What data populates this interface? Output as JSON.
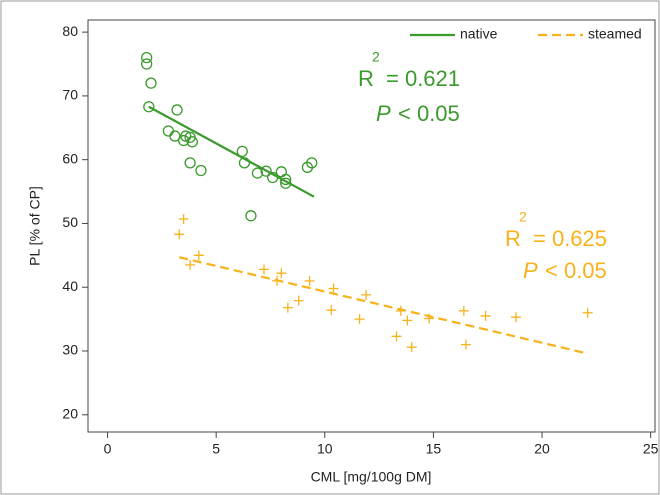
{
  "chart_data": {
    "type": "scatter",
    "x_label": "CML [mg/100g DM]",
    "y_label": "PL [% of CP]",
    "xlim": [
      -0.9,
      25.2
    ],
    "xticks": [
      0,
      5,
      10,
      15,
      20,
      25
    ],
    "ylim": [
      17.3,
      81.9
    ],
    "yticks": [
      20,
      30,
      40,
      50,
      60,
      70,
      80
    ],
    "legend": "top-right",
    "series": [
      {
        "name": "native",
        "color": "#3a9a2c",
        "marker": "circle",
        "line_style": "solid",
        "x": [
          1.8,
          1.8,
          2.0,
          1.9,
          2.8,
          3.1,
          3.2,
          3.5,
          3.6,
          3.8,
          3.9,
          3.8,
          4.3,
          6.2,
          6.3,
          6.6,
          6.9,
          7.3,
          7.6,
          8.0,
          8.2,
          8.2,
          9.2,
          9.4
        ],
        "values": [
          76,
          75,
          72,
          68.3,
          64.5,
          63.7,
          67.8,
          63,
          63.7,
          63.5,
          62.8,
          59.5,
          58.3,
          61.3,
          59.5,
          51.2,
          57.9,
          58.2,
          57.2,
          58.1,
          56.9,
          56.3,
          58.8,
          59.5
        ],
        "fit": {
          "x": [
            1.9,
            9.5
          ],
          "values": [
            68.3,
            54.2
          ]
        },
        "annotation": {
          "r": "R",
          "sup": "2",
          "eq": "= 0.621",
          "p": "P",
          "p_rel": "< 0.05"
        }
      },
      {
        "name": "steamed",
        "color": "#f7b21b",
        "marker": "plus",
        "line_style": "dashed",
        "x": [
          3.3,
          3.5,
          3.8,
          4.2,
          7.2,
          7.8,
          8.0,
          8.3,
          8.8,
          9.3,
          10.3,
          10.4,
          11.6,
          11.9,
          13.3,
          13.5,
          13.8,
          14.0,
          14.8,
          16.4,
          16.5,
          17.4,
          18.8,
          22.1
        ],
        "values": [
          48.3,
          50.7,
          43.5,
          45,
          42.8,
          41,
          42.2,
          36.8,
          37.9,
          41,
          36.4,
          39.8,
          35,
          38.8,
          32.3,
          36.3,
          34.8,
          30.6,
          35.1,
          36.3,
          31,
          35.5,
          35.3,
          36
        ],
        "fit": {
          "x": [
            3.3,
            22.1
          ],
          "values": [
            44.7,
            29.6
          ]
        },
        "annotation": {
          "r": "R",
          "sup": "2",
          "eq": "= 0.625",
          "p": "P",
          "p_rel": "< 0.05"
        }
      }
    ]
  }
}
